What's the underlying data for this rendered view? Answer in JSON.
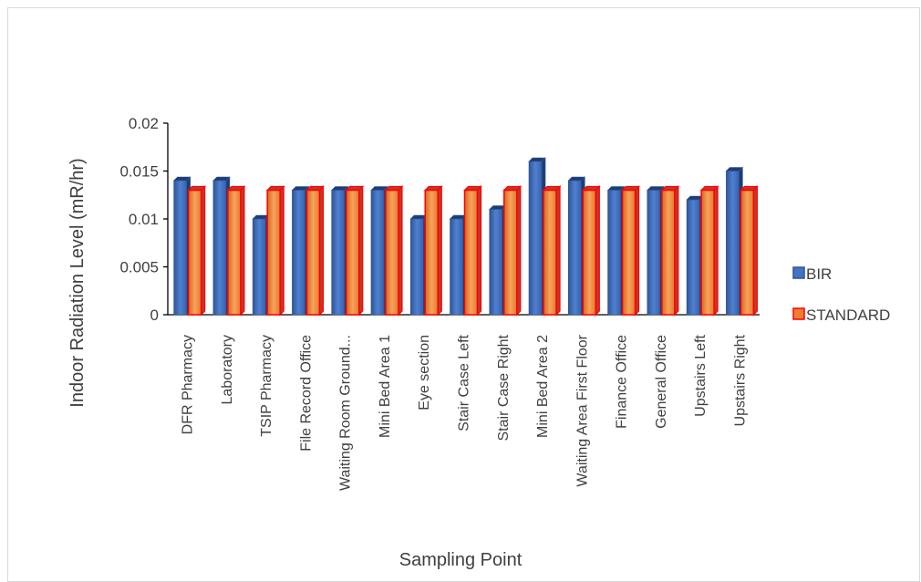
{
  "chart_data": {
    "type": "bar",
    "title": "",
    "xlabel": "Sampling Point",
    "ylabel": "Indoor Radiation Level (mR/hr)",
    "ylim": [
      0,
      0.02
    ],
    "yticks": [
      "0",
      "0.005",
      "0.01",
      "0.015",
      "0.02"
    ],
    "grid": false,
    "legend_position": "right",
    "categories": [
      "DFR Pharmacy",
      "Laboratory",
      "TSIP Pharmacy",
      "File Record Office",
      "Waiting Room Ground...",
      "Mini Bed Area 1",
      "Eye section",
      "Stair Case Left",
      "Stair Case Right",
      "Mini Bed Area 2",
      "Waiting Area First Floor",
      "Finance Office",
      "General Office",
      "Upstairs Left",
      "Upstairs Right"
    ],
    "series": [
      {
        "name": "BIR",
        "color": "#4472c4",
        "values": [
          0.014,
          0.014,
          0.01,
          0.013,
          0.013,
          0.013,
          0.01,
          0.01,
          0.011,
          0.016,
          0.014,
          0.013,
          0.013,
          0.012,
          0.015
        ]
      },
      {
        "name": "STANDARD",
        "color": "#ed7d31",
        "edge_color": "#ff0000",
        "values": [
          0.013,
          0.013,
          0.013,
          0.013,
          0.013,
          0.013,
          0.013,
          0.013,
          0.013,
          0.013,
          0.013,
          0.013,
          0.013,
          0.013,
          0.013
        ]
      }
    ]
  }
}
